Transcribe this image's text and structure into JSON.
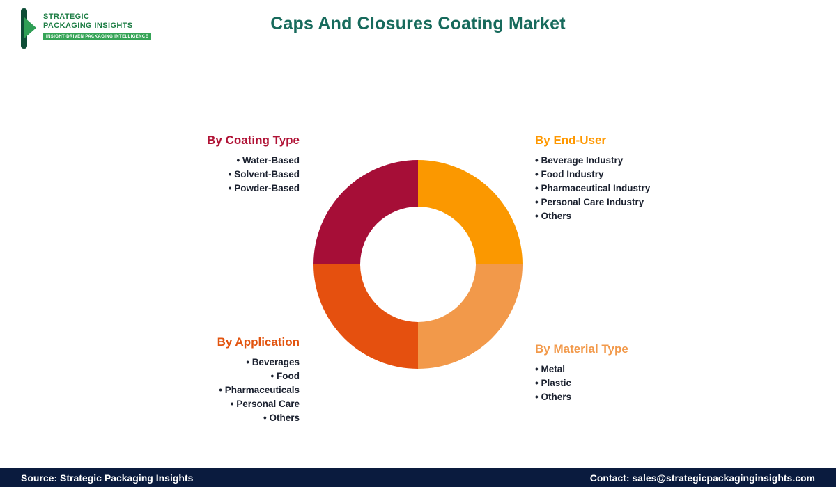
{
  "header": {
    "title": "Caps And Closures Coating Market",
    "logo": {
      "line1": "STRATEGIC",
      "line2": "PACKAGING INSIGHTS",
      "tagline": "INSIGHT-DRIVEN PACKAGING INTELLIGENCE",
      "bar_color": "#0E4D36",
      "arrow_color": "#2F9E55",
      "text_color": "#1E7E45",
      "tagline_bg": "#35A456"
    },
    "title_color": "#176A5C"
  },
  "segments": [
    {
      "id": "coating-type",
      "heading": "By Coating Type",
      "color": "#B01235",
      "items": [
        "Water-Based",
        "Solvent-Based",
        "Powder-Based"
      ]
    },
    {
      "id": "end-user",
      "heading": "By End-User",
      "color": "#FF9800",
      "items": [
        "Beverage Industry",
        "Food Industry",
        "Pharmaceutical Industry",
        "Personal Care Industry",
        "Others"
      ]
    },
    {
      "id": "application",
      "heading": "By Application",
      "color": "#E2540F",
      "items": [
        "Beverages",
        "Food",
        "Pharmaceuticals",
        "Personal Care",
        "Others"
      ]
    },
    {
      "id": "material-type",
      "heading": "By Material Type",
      "color": "#F2994A",
      "items": [
        "Metal",
        "Plastic",
        "Others"
      ]
    }
  ],
  "chart_data": {
    "type": "pie",
    "style": "donut",
    "title": "Caps And Closures Coating Market",
    "legend_position": "around",
    "segments": [
      {
        "label": "By End-User",
        "value": 25,
        "color": "#FB9800",
        "position": "top-right"
      },
      {
        "label": "By Material Type",
        "value": 25,
        "color": "#F2994A",
        "position": "bottom-right"
      },
      {
        "label": "By Application",
        "value": 25,
        "color": "#E5500F",
        "position": "bottom-left"
      },
      {
        "label": "By Coating Type",
        "value": 25,
        "color": "#A60E37",
        "position": "top-left"
      }
    ]
  },
  "footer": {
    "source": "Source: Strategic Packaging Insights",
    "contact": "Contact: sales@strategicpackaginginsights.com",
    "bg_color": "#0A1B3E"
  }
}
